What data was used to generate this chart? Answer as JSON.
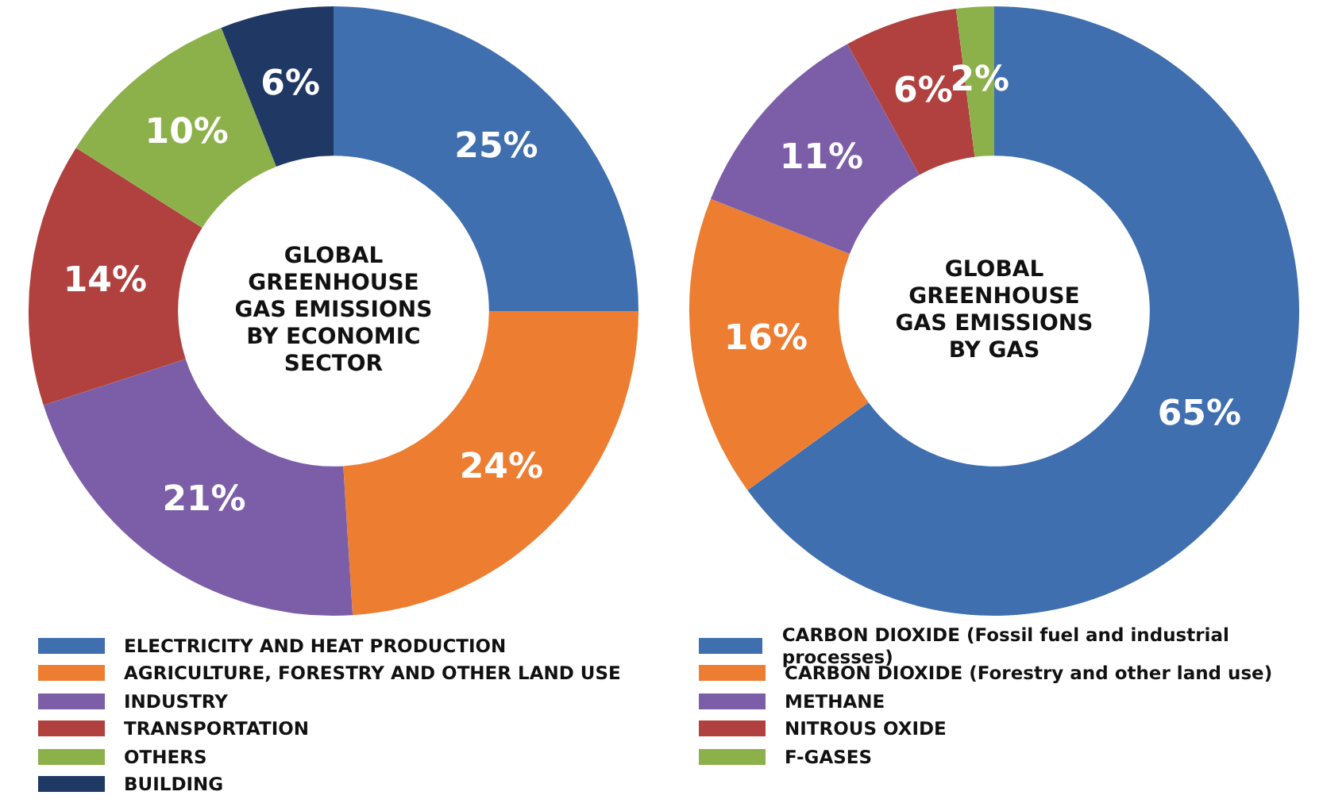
{
  "chart_data": [
    {
      "type": "donut",
      "title": "GLOBAL GREENHOUSE GAS EMISSIONS BY ECONOMIC SECTOR",
      "categories": [
        "ELECTRICITY AND HEAT PRODUCTION",
        "AGRICULTURE, FORESTRY AND OTHER LAND USE",
        "INDUSTRY",
        "TRANSPORTATION",
        "OTHERS",
        "BUILDING"
      ],
      "values": [
        25,
        24,
        21,
        14,
        10,
        6
      ],
      "colors": [
        "#3f6fae",
        "#ed7d31",
        "#7b5ea7",
        "#b0413e",
        "#8cb04a",
        "#1f3864"
      ],
      "value_labels": [
        "25%",
        "24%",
        "21%",
        "14%",
        "10%",
        "6%"
      ],
      "legend": "bottom"
    },
    {
      "type": "donut",
      "title": "GLOBAL GREENHOUSE GAS EMISSIONS BY GAS",
      "categories": [
        "CARBON DIOXIDE (Fossil fuel and industrial processes)",
        "CARBON DIOXIDE (Forestry and other land use)",
        "METHANE",
        "NITROUS OXIDE",
        "F-GASES"
      ],
      "values": [
        65,
        16,
        11,
        6,
        2
      ],
      "colors": [
        "#3f6fae",
        "#ed7d31",
        "#7b5ea7",
        "#b0413e",
        "#8cb04a"
      ],
      "value_labels": [
        "65%",
        "16%",
        "11%",
        "6%",
        "2%"
      ],
      "legend": "bottom"
    }
  ]
}
